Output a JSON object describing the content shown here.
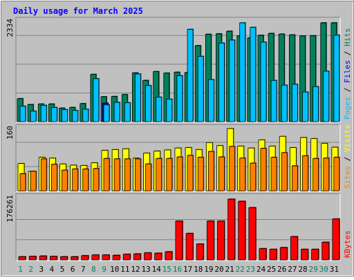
{
  "chart_data": [
    {
      "type": "bar",
      "title": "Daily usage for March 2025",
      "categories": [
        "1",
        "2",
        "3",
        "4",
        "5",
        "6",
        "7",
        "8",
        "9",
        "10",
        "11",
        "12",
        "13",
        "14",
        "15",
        "16",
        "17",
        "18",
        "19",
        "20",
        "21",
        "22",
        "23",
        "24",
        "25",
        "26",
        "27",
        "28",
        "29",
        "30",
        "31"
      ],
      "weekend_days": [
        "1",
        "2",
        "8",
        "9",
        "15",
        "16",
        "22",
        "23",
        "29",
        "30"
      ],
      "ymax_label": "2334",
      "ylim": [
        0,
        2334
      ],
      "grid": true,
      "legend": [
        "Pages",
        "Files",
        "Hits"
      ],
      "series": [
        {
          "name": "Hits",
          "color": "#00805c",
          "values": [
            535,
            398,
            410,
            410,
            315,
            330,
            420,
            1100,
            580,
            585,
            630,
            1135,
            960,
            1165,
            1130,
            1150,
            1140,
            1770,
            2034,
            2045,
            2105,
            1995,
            1950,
            2010,
            2054,
            2038,
            2020,
            1995,
            2000,
            2300,
            2300
          ]
        },
        {
          "name": "Files",
          "color": "#0000ff",
          "values": [
            0,
            0,
            0,
            0,
            0,
            0,
            0,
            0,
            430,
            0,
            0,
            0,
            0,
            0,
            0,
            0,
            0,
            0,
            0,
            0,
            0,
            0,
            0,
            0,
            0,
            0,
            0,
            0,
            0,
            0,
            0
          ]
        },
        {
          "name": "Pages",
          "color": "#00c0ff",
          "values": [
            360,
            245,
            380,
            330,
            280,
            260,
            290,
            1000,
            390,
            450,
            440,
            1110,
            840,
            570,
            525,
            1070,
            2150,
            1520,
            980,
            1830,
            1900,
            2300,
            2195,
            1850,
            960,
            850,
            870,
            690,
            815,
            1175,
            2015
          ]
        }
      ]
    },
    {
      "type": "bar",
      "ymax_label": "160",
      "ylim": [
        0,
        160
      ],
      "grid": true,
      "legend": [
        "Sites",
        "Visits"
      ],
      "series": [
        {
          "name": "Visits",
          "color": "#ffff00",
          "values": [
            70,
            50,
            86,
            84,
            69,
            66,
            65,
            72,
            104,
            106,
            108,
            84,
            97,
            102,
            105,
            110,
            111,
            106,
            124,
            116,
            160,
            115,
            110,
            131,
            115,
            140,
            111,
            137,
            134,
            122,
            112
          ]
        },
        {
          "name": "Sites",
          "color": "#ff8000",
          "values": [
            44,
            50,
            82,
            68,
            53,
            56,
            56,
            57,
            83,
            82,
            82,
            82,
            69,
            83,
            83,
            87,
            91,
            86,
            101,
            87,
            114,
            84,
            71,
            109,
            86,
            98,
            64,
            90,
            83,
            84,
            86
          ]
        }
      ]
    },
    {
      "type": "bar",
      "ymax_label": "176261",
      "ylim": [
        0,
        176261
      ],
      "grid": true,
      "legend": [
        "KBytes"
      ],
      "series": [
        {
          "name": "KBytes",
          "color": "#ff0000",
          "values": [
            9000,
            10000,
            11000,
            10000,
            9000,
            9000,
            12000,
            14000,
            14000,
            13000,
            16000,
            17000,
            20000,
            19000,
            23000,
            110000,
            75000,
            45000,
            110000,
            110000,
            172000,
            166000,
            148000,
            32000,
            30000,
            35000,
            66000,
            30000,
            30000,
            50000,
            116000
          ]
        }
      ]
    }
  ]
}
